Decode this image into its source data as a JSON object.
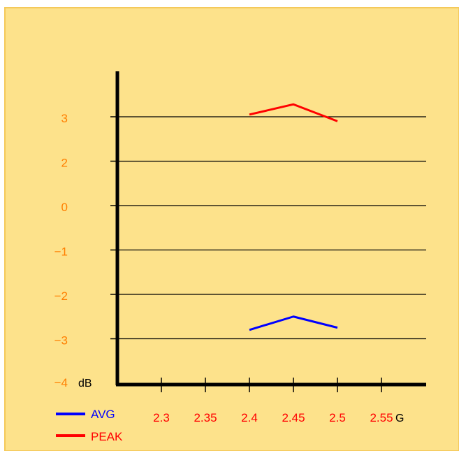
{
  "chart_data": {
    "type": "line",
    "y_unit_label": "dB",
    "x_unit_label": "G",
    "y_ticks": [
      "3",
      "2",
      "0",
      "-1",
      "-2",
      "-3",
      "-4"
    ],
    "x_ticks": [
      "2.3",
      "2.35",
      "2.4",
      "2.45",
      "2.5",
      "2.55"
    ],
    "grid": true,
    "legend_position": "bottom-left",
    "series": [
      {
        "name": "AVG",
        "color": "#0000ff",
        "x": [
          2.4,
          2.45,
          2.5
        ],
        "y": [
          -2.8,
          -2.5,
          -2.75
        ]
      },
      {
        "name": "PEAK",
        "color": "#ff0000",
        "x": [
          2.4,
          2.45,
          2.5
        ],
        "y": [
          3.05,
          3.28,
          2.9
        ]
      }
    ]
  },
  "colors": {
    "background": "#fde28b",
    "frame_border": "#f4c95a",
    "axis": "#000000",
    "grid": "#000000",
    "y_tick_label": "#ff7f00",
    "x_tick_label": "#ff0000",
    "unit_label": "#000000"
  }
}
